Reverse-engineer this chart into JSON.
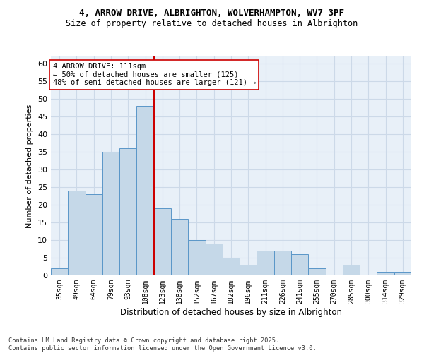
{
  "title_line1": "4, ARROW DRIVE, ALBRIGHTON, WOLVERHAMPTON, WV7 3PF",
  "title_line2": "Size of property relative to detached houses in Albrighton",
  "xlabel": "Distribution of detached houses by size in Albrighton",
  "ylabel": "Number of detached properties",
  "categories": [
    "35sqm",
    "49sqm",
    "64sqm",
    "79sqm",
    "93sqm",
    "108sqm",
    "123sqm",
    "138sqm",
    "152sqm",
    "167sqm",
    "182sqm",
    "196sqm",
    "211sqm",
    "226sqm",
    "241sqm",
    "255sqm",
    "270sqm",
    "285sqm",
    "300sqm",
    "314sqm",
    "329sqm"
  ],
  "values": [
    2,
    24,
    23,
    35,
    36,
    48,
    19,
    16,
    10,
    9,
    5,
    3,
    7,
    7,
    6,
    2,
    0,
    3,
    0,
    1,
    1
  ],
  "bar_color": "#c5d8e8",
  "bar_edge_color": "#5a96c8",
  "vline_color": "#cc0000",
  "ylim": [
    0,
    62
  ],
  "yticks": [
    0,
    5,
    10,
    15,
    20,
    25,
    30,
    35,
    40,
    45,
    50,
    55,
    60
  ],
  "annotation_text": "4 ARROW DRIVE: 111sqm\n← 50% of detached houses are smaller (125)\n48% of semi-detached houses are larger (121) →",
  "annotation_box_color": "#ffffff",
  "annotation_box_edge": "#cc0000",
  "grid_color": "#ccd9e8",
  "background_color": "#e8f0f8",
  "footer_text": "Contains HM Land Registry data © Crown copyright and database right 2025.\nContains public sector information licensed under the Open Government Licence v3.0."
}
